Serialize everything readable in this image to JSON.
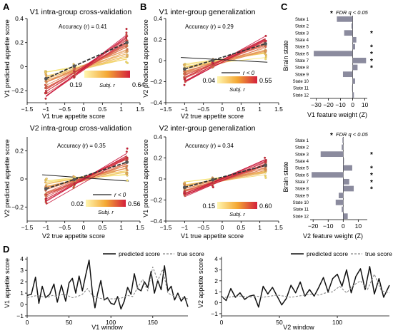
{
  "panels": {
    "A": {
      "letter": "A",
      "top": {
        "title": "V1 intra-group cross-validation",
        "xlabel": "V1 true appetite score",
        "ylabel": "V1 predicted appetite score",
        "accuracy": "Accuracy (r) = 0.41",
        "colorbar_min": "0.19",
        "colorbar_max": "0.64",
        "colorbar_label": "Subj. r",
        "rneg_label": ""
      },
      "bottom": {
        "title": "V2 intra-group cross-validation",
        "xlabel": "V2 true appetite score",
        "ylabel": "V2 predicted appetite score",
        "accuracy": "Accuracy (r) = 0.35",
        "colorbar_min": "0.02",
        "colorbar_max": "0.56",
        "colorbar_label": "Subj. r",
        "rneg_label": "r < 0"
      }
    },
    "B": {
      "letter": "B",
      "top": {
        "title": "V1 inter-group generalization",
        "xlabel": "V2 true appetite score",
        "ylabel": "V2 predicted appetite score",
        "accuracy": "Accuracy (r) = 0.29",
        "colorbar_min": "0.04",
        "colorbar_max": "0.55",
        "colorbar_label": "Subj. r",
        "rneg_label": "r < 0"
      },
      "bottom": {
        "title": "V2 inter-group generalization",
        "xlabel": "V1 true appetite score",
        "ylabel": "V1 predicted appetite score",
        "accuracy": "Accuracy (r) = 0.34",
        "colorbar_min": "0.15",
        "colorbar_max": "0.60",
        "colorbar_label": "Subj. r",
        "rneg_label": ""
      }
    },
    "C": {
      "letter": "C",
      "fdr_label": "FDR q < 0.05",
      "ylabel": "Brain state",
      "top_xlabel": "V1 feature weight (Z)",
      "bottom_xlabel": "V2 feature weight (Z)"
    },
    "D": {
      "letter": "D",
      "legend_predicted": "predicted score",
      "legend_true": "true score",
      "left": {
        "xlabel": "V1 window",
        "ylabel": "V1 appetite score"
      },
      "right": {
        "xlabel": "V2 window",
        "ylabel": "V2 appetite score"
      }
    }
  },
  "colors": {
    "bar": "#8b8b9e",
    "low": "#f7e76a",
    "high": "#c8103a",
    "neg": "#222222"
  },
  "chart_data": [
    {
      "type": "scatter",
      "id": "A-top",
      "title": "V1 intra-group cross-validation",
      "xlabel": "V1 true appetite score",
      "ylabel": "V1 predicted appetite score",
      "xlim": [
        -1.5,
        1.5
      ],
      "ylim": [
        -0.3,
        0.4
      ],
      "xticks": [
        -1.5,
        -1.0,
        -0.5,
        0,
        0.5,
        1.0,
        1.5
      ],
      "yticks": [
        -0.2,
        0,
        0.2,
        0.4
      ],
      "x_levels": [
        -1,
        -0.25,
        1.15
      ],
      "subject_lines": {
        "count": 26,
        "slope_min": 0.05,
        "slope_max": 0.24,
        "negative_count": 0
      },
      "group_fit": {
        "x": [
          -1,
          1.15
        ],
        "y": [
          -0.1,
          0.2
        ]
      },
      "accuracy_r": 0.41,
      "colorbar": [
        0.19,
        0.64
      ]
    },
    {
      "type": "scatter",
      "id": "B-top",
      "title": "V1 inter-group generalization",
      "xlabel": "V2 true appetite score",
      "ylabel": "V2 predicted appetite score",
      "xlim": [
        -1.5,
        1.5
      ],
      "ylim": [
        -0.4,
        0.4
      ],
      "xticks": [
        -1.5,
        -1.0,
        -0.5,
        0,
        0.5,
        1.0,
        1.5
      ],
      "yticks": [
        -0.4,
        -0.2,
        0,
        0.2,
        0.4
      ],
      "x_levels": [
        -1,
        -0.25,
        1.15
      ],
      "subject_lines": {
        "count": 26,
        "slope_min": 0.04,
        "slope_max": 0.2,
        "negative_count": 1
      },
      "group_fit": {
        "x": [
          -1,
          1.15
        ],
        "y": [
          -0.08,
          0.16
        ]
      },
      "accuracy_r": 0.29,
      "colorbar": [
        0.04,
        0.55
      ]
    },
    {
      "type": "scatter",
      "id": "A-bottom",
      "title": "V2 intra-group cross-validation",
      "xlabel": "V2 true appetite score",
      "ylabel": "V2 predicted appetite score",
      "xlim": [
        -1.5,
        1.5
      ],
      "ylim": [
        -0.3,
        0.3
      ],
      "xticks": [
        -1.5,
        -1.0,
        -0.5,
        0,
        0.5,
        1.0,
        1.5
      ],
      "yticks": [
        -0.2,
        0,
        0.2
      ],
      "x_levels": [
        -1,
        -0.25,
        1.15
      ],
      "subject_lines": {
        "count": 26,
        "slope_min": 0.02,
        "slope_max": 0.16,
        "negative_count": 1
      },
      "group_fit": {
        "x": [
          -1,
          1.15
        ],
        "y": [
          -0.07,
          0.12
        ]
      },
      "accuracy_r": 0.35,
      "colorbar": [
        0.02,
        0.56
      ]
    },
    {
      "type": "scatter",
      "id": "B-bottom",
      "title": "V2 inter-group generalization",
      "xlabel": "V1 true appetite score",
      "ylabel": "V1 predicted appetite score",
      "xlim": [
        -1.5,
        1.5
      ],
      "ylim": [
        -0.4,
        0.4
      ],
      "xticks": [
        -1.5,
        -1.0,
        -0.5,
        0,
        0.5,
        1.0,
        1.5
      ],
      "yticks": [
        -0.4,
        -0.2,
        0,
        0.2,
        0.4
      ],
      "x_levels": [
        -1,
        -0.25,
        1.15
      ],
      "subject_lines": {
        "count": 26,
        "slope_min": 0.04,
        "slope_max": 0.16,
        "negative_count": 0
      },
      "group_fit": {
        "x": [
          -1,
          1.15
        ],
        "y": [
          -0.08,
          0.13
        ]
      },
      "accuracy_r": 0.34,
      "colorbar": [
        0.15,
        0.6
      ]
    },
    {
      "type": "bar",
      "id": "C-top",
      "orientation": "horizontal",
      "xlabel": "V1 feature weight (Z)",
      "ylabel": "Brain state",
      "xlim": [
        -35,
        12
      ],
      "xticks": [
        -30,
        -20,
        -10,
        0,
        10
      ],
      "categories": [
        "State 1",
        "State 2",
        "State 3",
        "State 4",
        "State 5",
        "State 6",
        "State 7",
        "State 8",
        "State 9",
        "State 10",
        "State 11",
        "State 12"
      ],
      "values": [
        -13,
        -1,
        -7,
        3,
        2,
        -32,
        11,
        4,
        -8,
        2,
        -0.5,
        1
      ],
      "significant": [
        false,
        false,
        true,
        false,
        true,
        true,
        true,
        true,
        false,
        false,
        false,
        false
      ]
    },
    {
      "type": "bar",
      "id": "C-bottom",
      "orientation": "horizontal",
      "xlabel": "V2 feature weight (Z)",
      "ylabel": "Brain state",
      "xlim": [
        -22,
        16
      ],
      "xticks": [
        -20,
        -10,
        0,
        10
      ],
      "categories": [
        "State 1",
        "State 2",
        "State 3",
        "State 4",
        "State 5",
        "State 6",
        "State 7",
        "State 8",
        "State 9",
        "State 10",
        "State 11",
        "State 12"
      ],
      "values": [
        -0.5,
        -1,
        -15,
        0.5,
        6,
        -21,
        4,
        7,
        -3,
        -5,
        -1,
        3
      ],
      "significant": [
        false,
        false,
        true,
        false,
        true,
        true,
        true,
        true,
        false,
        false,
        false,
        false
      ]
    },
    {
      "type": "line",
      "id": "D-left",
      "xlabel": "V1 window",
      "ylabel": "V1 appetite score",
      "xlim": [
        0,
        192
      ],
      "ylim": [
        -1,
        4.2
      ],
      "xticks": [
        0,
        50,
        100,
        150
      ],
      "yticks": [
        -1,
        0,
        1,
        2,
        3,
        4
      ],
      "series": [
        {
          "name": "predicted score",
          "x": [
            0,
            5,
            10,
            14,
            18,
            22,
            27,
            32,
            36,
            41,
            46,
            50,
            54,
            58,
            62,
            66,
            70,
            74,
            78,
            81,
            84,
            88,
            92,
            96,
            100,
            104,
            108,
            112,
            116,
            120,
            124,
            128,
            132,
            136,
            140,
            144,
            148,
            152,
            156,
            160,
            164,
            168,
            172,
            176,
            180,
            184,
            188,
            192
          ],
          "y": [
            0.8,
            0.9,
            2.4,
            0.1,
            1.6,
            0.6,
            0.9,
            1.8,
            0.2,
            1.7,
            0.3,
            1.9,
            2.3,
            1.0,
            2.5,
            1.2,
            2.6,
            3.9,
            1.0,
            -0.3,
            0.9,
            2.1,
            0.4,
            0.6,
            0.1,
            0.0,
            0.7,
            -0.4,
            0.3,
            1.5,
            0.9,
            2.7,
            1.4,
            1.2,
            2.0,
            1.5,
            2.9,
            1.0,
            2.1,
            1.3,
            3.4,
            1.2,
            1.6,
            0.4,
            1.0,
            0.3,
            0.7,
            -0.2
          ]
        },
        {
          "name": "true score",
          "x": [
            0,
            6,
            12,
            18,
            24,
            30,
            36,
            42,
            48,
            54,
            60,
            66,
            72,
            78,
            84,
            90,
            96,
            102,
            108,
            114,
            120,
            126,
            132,
            138,
            144,
            150,
            156,
            162,
            168,
            174,
            180,
            186,
            192
          ],
          "y": [
            0.6,
            0.7,
            0.8,
            0.7,
            0.6,
            0.8,
            0.7,
            0.9,
            0.8,
            0.6,
            0.7,
            0.9,
            1.4,
            0.8,
            0.6,
            0.5,
            0.5,
            0.5,
            0.5,
            0.6,
            0.8,
            0.7,
            1.5,
            2.2,
            1.2,
            3.3,
            2.1,
            3.1,
            1.0,
            0.8,
            0.6,
            0.6,
            0.5
          ]
        }
      ]
    },
    {
      "type": "line",
      "id": "D-right",
      "xlabel": "V2 window",
      "ylabel": "V2 appetite score",
      "xlim": [
        0,
        145
      ],
      "ylim": [
        -1.2,
        4.2
      ],
      "xticks": [
        0,
        50,
        100
      ],
      "yticks": [
        -1,
        0,
        1,
        2,
        3,
        4
      ],
      "series": [
        {
          "name": "predicted score",
          "x": [
            0,
            4,
            8,
            12,
            16,
            20,
            24,
            28,
            32,
            36,
            40,
            44,
            48,
            52,
            56,
            60,
            64,
            68,
            72,
            76,
            80,
            84,
            88,
            92,
            96,
            100,
            104,
            108,
            112,
            116,
            120,
            124,
            128,
            132,
            136,
            140,
            145
          ],
          "y": [
            0.6,
            0.2,
            1.3,
            0.5,
            0.9,
            0.3,
            0.6,
            0.7,
            -0.4,
            1.5,
            0.8,
            1.4,
            0.6,
            -0.2,
            0.4,
            1.6,
            0.9,
            1.9,
            0.6,
            1.2,
            0.6,
            1.4,
            2.3,
            1.0,
            2.2,
            2.6,
            1.5,
            3.0,
            0.9,
            2.4,
            3.1,
            1.2,
            3.3,
            0.8,
            2.2,
            0.5,
            1.6
          ]
        },
        {
          "name": "true score",
          "x": [
            0,
            6,
            12,
            18,
            24,
            30,
            36,
            42,
            48,
            54,
            60,
            66,
            72,
            78,
            84,
            90,
            96,
            102,
            108,
            114,
            120,
            126,
            132,
            138,
            145
          ],
          "y": [
            0.5,
            0.5,
            0.6,
            0.6,
            0.5,
            0.6,
            0.5,
            0.6,
            0.7,
            0.6,
            0.5,
            0.6,
            0.7,
            0.8,
            0.7,
            0.9,
            1.0,
            1.5,
            0.9,
            1.6,
            2.0,
            1.2,
            2.6,
            1.1,
            0.9
          ]
        }
      ]
    }
  ]
}
